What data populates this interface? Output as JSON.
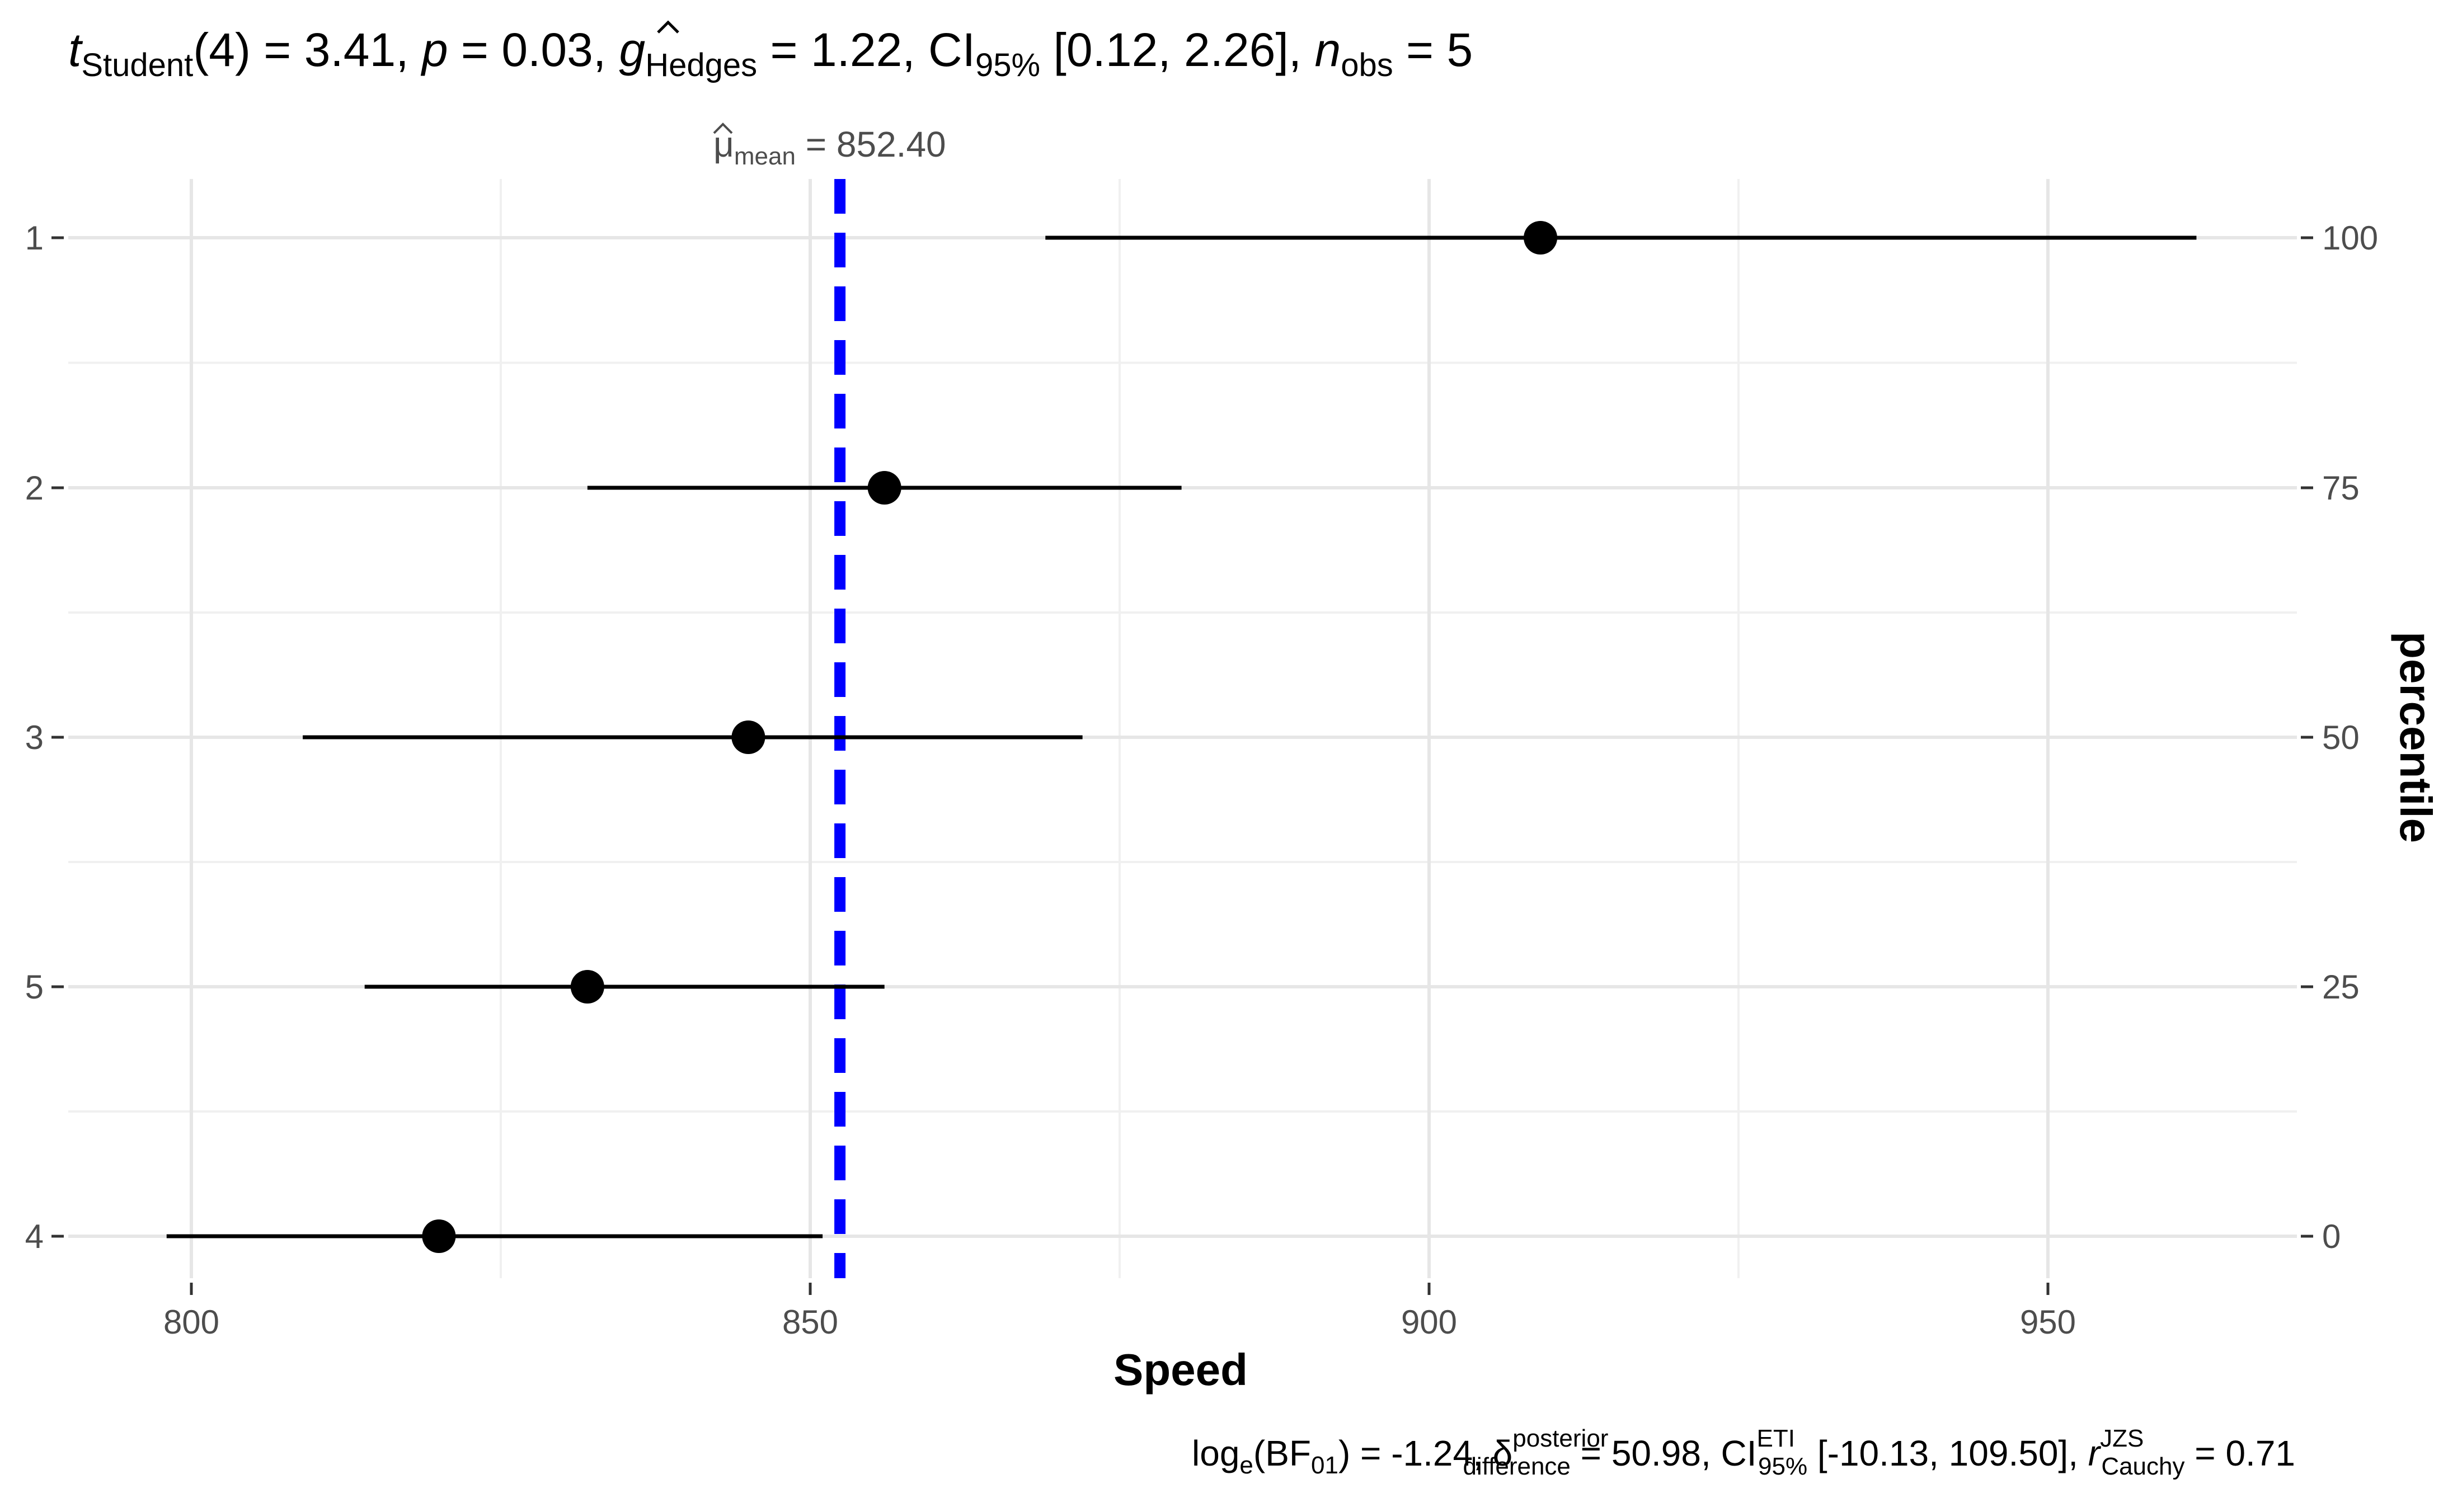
{
  "chart_data": {
    "type": "scatter",
    "subtitle": {
      "t_symbol": "t",
      "t_sub": "Student",
      "df": "(4)",
      "t_value": " = 3.41, ",
      "p_symbol": "p",
      "p_value": " = 0.03, ",
      "g_symbol": "g",
      "g_sub": "Hedges",
      "g_value": " = 1.22, CI",
      "ci_sub": "95%",
      "ci_value": " [0.12, 2.26], ",
      "n_symbol": "n",
      "n_sub": "obs",
      "n_value": " = 5"
    },
    "mean_label": {
      "symbol": "μ",
      "sub": "mean",
      "value": " = 852.40"
    },
    "mean_value": 852.4,
    "mean_color": "#0000ff",
    "xlabel": "Speed",
    "ylabel_right": "percentile",
    "xlim": [
      789,
      972
    ],
    "x_ticks": [
      {
        "value": 800,
        "label": "800"
      },
      {
        "value": 850,
        "label": "850"
      },
      {
        "value": 900,
        "label": "900"
      },
      {
        "value": 950,
        "label": "950"
      }
    ],
    "right_ticks": [
      {
        "row": 0,
        "label": "100"
      },
      {
        "row": 1,
        "label": "75"
      },
      {
        "row": 2,
        "label": "50"
      },
      {
        "row": 3,
        "label": "25"
      },
      {
        "row": 4,
        "label": "0"
      }
    ],
    "points": [
      {
        "label": "1",
        "estimate": 909,
        "low": 869,
        "high": 962
      },
      {
        "label": "2",
        "estimate": 856,
        "low": 832,
        "high": 880
      },
      {
        "label": "3",
        "estimate": 845,
        "low": 809,
        "high": 872
      },
      {
        "label": "5",
        "estimate": 832,
        "low": 814,
        "high": 856
      },
      {
        "label": "4",
        "estimate": 820,
        "low": 798,
        "high": 851
      }
    ],
    "caption": {
      "log_text": "log",
      "log_sub": "e",
      "bf_text": "(BF",
      "bf_sub": "01",
      "bf_value": ") = -1.24, ",
      "delta_symbol": "δ",
      "delta_sup": "posterior",
      "delta_sub": "difference",
      "delta_value": " = 50.98, CI",
      "ci_sup": "ETI",
      "ci_sub": "95%",
      "ci_value": " [-10.13, 109.50], ",
      "r_symbol": "r",
      "r_sup": "JZS",
      "r_sub": "Cauchy",
      "r_value": " = 0.71"
    },
    "grid": true,
    "point_color": "#000000"
  }
}
